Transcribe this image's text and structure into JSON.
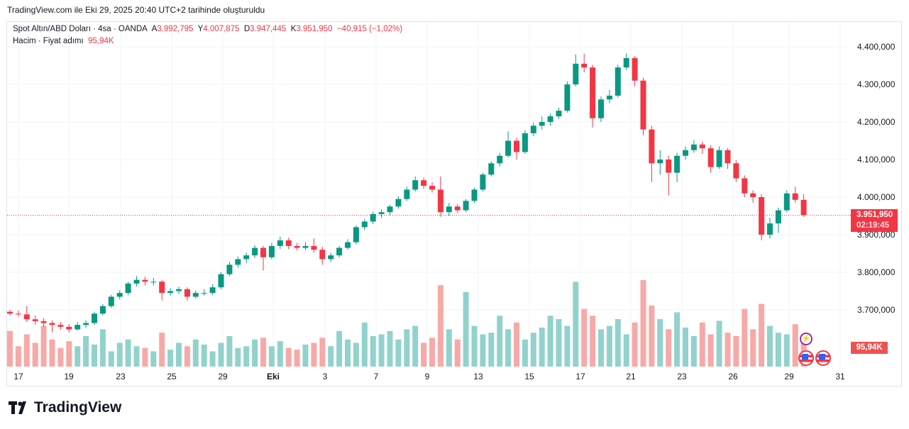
{
  "header": {
    "created": "TradingView.com ile Eki 29, 2025 20:40 UTC+2 tarihinde oluşturuldu"
  },
  "legend": {
    "symbol": "Spot Altın/ABD Doları · 4sa · OANDA",
    "o_label": "A",
    "o": "3.992,795",
    "h_label": "Y",
    "h": "4.007,875",
    "l_label": "D",
    "l": "3.947,445",
    "c_label": "K",
    "c": "3.951,950",
    "change": "−40,915 (−1,02%)",
    "volume_label": "Hacim · Fiyat adımı",
    "volume": "95,94K"
  },
  "price_badge": {
    "price": "3.951,950",
    "countdown": "02:19:45"
  },
  "volume_badge": "95,94K",
  "logo": "TradingView",
  "colors": {
    "up": "#089981",
    "down": "#f23645",
    "up_volume": "#92d2cc",
    "down_volume": "#f7a9a7",
    "grid": "#f0f3fa"
  },
  "icons": [
    "lightning-event-icon",
    "us-flag-event-icon",
    "us-flag-event-icon"
  ],
  "chart_data": {
    "type": "candlestick",
    "interval": "4sa",
    "ylim": [
      3630,
      4420
    ],
    "y_ticks": [
      "4.400,000",
      "4.300,000",
      "4.200,000",
      "4.100,000",
      "4.000,000",
      "3.900,000",
      "3.800,000",
      "3.700,000"
    ],
    "y_tick_values": [
      4400,
      4300,
      4200,
      4100,
      4000,
      3900,
      3800,
      3700
    ],
    "x_ticks": [
      "17",
      "19",
      "23",
      "25",
      "29",
      "Eki",
      "3",
      "7",
      "9",
      "13",
      "15",
      "17",
      "21",
      "23",
      "26",
      "29",
      "31"
    ],
    "last_price": 3951.95,
    "grid": true,
    "candles": [
      [
        3695,
        3700,
        3685,
        3690
      ],
      [
        3690,
        3698,
        3682,
        3688
      ],
      [
        3688,
        3710,
        3668,
        3675
      ],
      [
        3675,
        3685,
        3660,
        3670
      ],
      [
        3670,
        3678,
        3655,
        3665
      ],
      [
        3665,
        3672,
        3640,
        3660
      ],
      [
        3660,
        3668,
        3648,
        3655
      ],
      [
        3655,
        3662,
        3640,
        3648
      ],
      [
        3648,
        3668,
        3645,
        3660
      ],
      [
        3660,
        3672,
        3652,
        3665
      ],
      [
        3665,
        3695,
        3660,
        3690
      ],
      [
        3690,
        3715,
        3685,
        3710
      ],
      [
        3710,
        3740,
        3705,
        3735
      ],
      [
        3735,
        3752,
        3728,
        3745
      ],
      [
        3745,
        3775,
        3740,
        3770
      ],
      [
        3770,
        3790,
        3762,
        3780
      ],
      [
        3780,
        3788,
        3765,
        3775
      ],
      [
        3775,
        3785,
        3765,
        3775
      ],
      [
        3775,
        3780,
        3725,
        3745
      ],
      [
        3745,
        3758,
        3738,
        3750
      ],
      [
        3750,
        3762,
        3742,
        3755
      ],
      [
        3755,
        3760,
        3725,
        3735
      ],
      [
        3735,
        3752,
        3730,
        3745
      ],
      [
        3745,
        3755,
        3738,
        3745
      ],
      [
        3745,
        3768,
        3740,
        3760
      ],
      [
        3760,
        3800,
        3755,
        3795
      ],
      [
        3795,
        3828,
        3790,
        3820
      ],
      [
        3820,
        3842,
        3812,
        3835
      ],
      [
        3835,
        3852,
        3825,
        3845
      ],
      [
        3845,
        3872,
        3838,
        3865
      ],
      [
        3865,
        3870,
        3805,
        3840
      ],
      [
        3840,
        3878,
        3835,
        3870
      ],
      [
        3870,
        3895,
        3862,
        3885
      ],
      [
        3885,
        3892,
        3862,
        3870
      ],
      [
        3870,
        3878,
        3858,
        3865
      ],
      [
        3865,
        3880,
        3860,
        3870
      ],
      [
        3870,
        3890,
        3852,
        3860
      ],
      [
        3860,
        3868,
        3820,
        3835
      ],
      [
        3835,
        3852,
        3828,
        3845
      ],
      [
        3845,
        3870,
        3840,
        3865
      ],
      [
        3865,
        3888,
        3860,
        3880
      ],
      [
        3880,
        3925,
        3875,
        3920
      ],
      [
        3920,
        3942,
        3912,
        3935
      ],
      [
        3935,
        3962,
        3928,
        3955
      ],
      [
        3955,
        3968,
        3945,
        3960
      ],
      [
        3960,
        3980,
        3952,
        3975
      ],
      [
        3975,
        4002,
        3970,
        3995
      ],
      [
        3995,
        4028,
        3990,
        4020
      ],
      [
        4020,
        4055,
        4015,
        4045
      ],
      [
        4045,
        4052,
        4022,
        4030
      ],
      [
        4030,
        4040,
        4012,
        4020
      ],
      [
        4020,
        4055,
        3948,
        3960
      ],
      [
        3960,
        3985,
        3950,
        3975
      ],
      [
        3975,
        3982,
        3958,
        3965
      ],
      [
        3965,
        3995,
        3960,
        3990
      ],
      [
        3990,
        4025,
        3985,
        4020
      ],
      [
        4020,
        4065,
        4015,
        4060
      ],
      [
        4060,
        4095,
        4055,
        4090
      ],
      [
        4090,
        4118,
        4082,
        4110
      ],
      [
        4110,
        4175,
        4105,
        4150
      ],
      [
        4150,
        4158,
        4100,
        4120
      ],
      [
        4120,
        4178,
        4115,
        4170
      ],
      [
        4170,
        4198,
        4162,
        4190
      ],
      [
        4190,
        4215,
        4180,
        4200
      ],
      [
        4200,
        4222,
        4190,
        4215
      ],
      [
        4215,
        4238,
        4208,
        4230
      ],
      [
        4230,
        4308,
        4225,
        4300
      ],
      [
        4300,
        4380,
        4295,
        4355
      ],
      [
        4355,
        4382,
        4332,
        4345
      ],
      [
        4345,
        4352,
        4185,
        4210
      ],
      [
        4210,
        4268,
        4200,
        4260
      ],
      [
        4260,
        4285,
        4250,
        4270
      ],
      [
        4270,
        4352,
        4265,
        4345
      ],
      [
        4345,
        4382,
        4338,
        4370
      ],
      [
        4370,
        4375,
        4295,
        4310
      ],
      [
        4310,
        4318,
        4165,
        4180
      ],
      [
        4180,
        4190,
        4040,
        4090
      ],
      [
        4090,
        4125,
        4060,
        4100
      ],
      [
        4100,
        4110,
        4005,
        4065
      ],
      [
        4065,
        4118,
        4040,
        4110
      ],
      [
        4110,
        4135,
        4100,
        4125
      ],
      [
        4125,
        4152,
        4118,
        4140
      ],
      [
        4140,
        4148,
        4115,
        4130
      ],
      [
        4130,
        4138,
        4065,
        4080
      ],
      [
        4080,
        4135,
        4075,
        4125
      ],
      [
        4125,
        4130,
        4075,
        4090
      ],
      [
        4090,
        4098,
        4040,
        4050
      ],
      [
        4050,
        4058,
        4000,
        4010
      ],
      [
        4010,
        4018,
        3985,
        4000
      ],
      [
        4000,
        4008,
        3885,
        3900
      ],
      [
        3900,
        3945,
        3890,
        3930
      ],
      [
        3930,
        3972,
        3905,
        3965
      ],
      [
        3965,
        4018,
        3960,
        4010
      ],
      [
        4010,
        4028,
        3985,
        3992.865
      ],
      [
        3992.795,
        4007.875,
        3947.445,
        3951.95
      ]
    ],
    "volume_k": [
      105,
      60,
      95,
      70,
      120,
      80,
      55,
      75,
      60,
      90,
      65,
      110,
      45,
      70,
      80,
      60,
      55,
      45,
      100,
      50,
      70,
      60,
      80,
      65,
      45,
      70,
      90,
      55,
      60,
      80,
      85,
      60,
      75,
      55,
      50,
      65,
      70,
      85,
      60,
      105,
      80,
      70,
      130,
      90,
      95,
      105,
      80,
      110,
      120,
      70,
      85,
      240,
      110,
      80,
      220,
      120,
      95,
      100,
      150,
      110,
      130,
      80,
      100,
      115,
      150,
      140,
      120,
      250,
      170,
      150,
      110,
      120,
      140,
      95,
      130,
      255,
      180,
      140,
      110,
      160,
      115,
      90,
      130,
      95,
      135,
      100,
      90,
      170,
      110,
      185,
      120,
      100,
      95,
      125,
      95.94
    ]
  }
}
